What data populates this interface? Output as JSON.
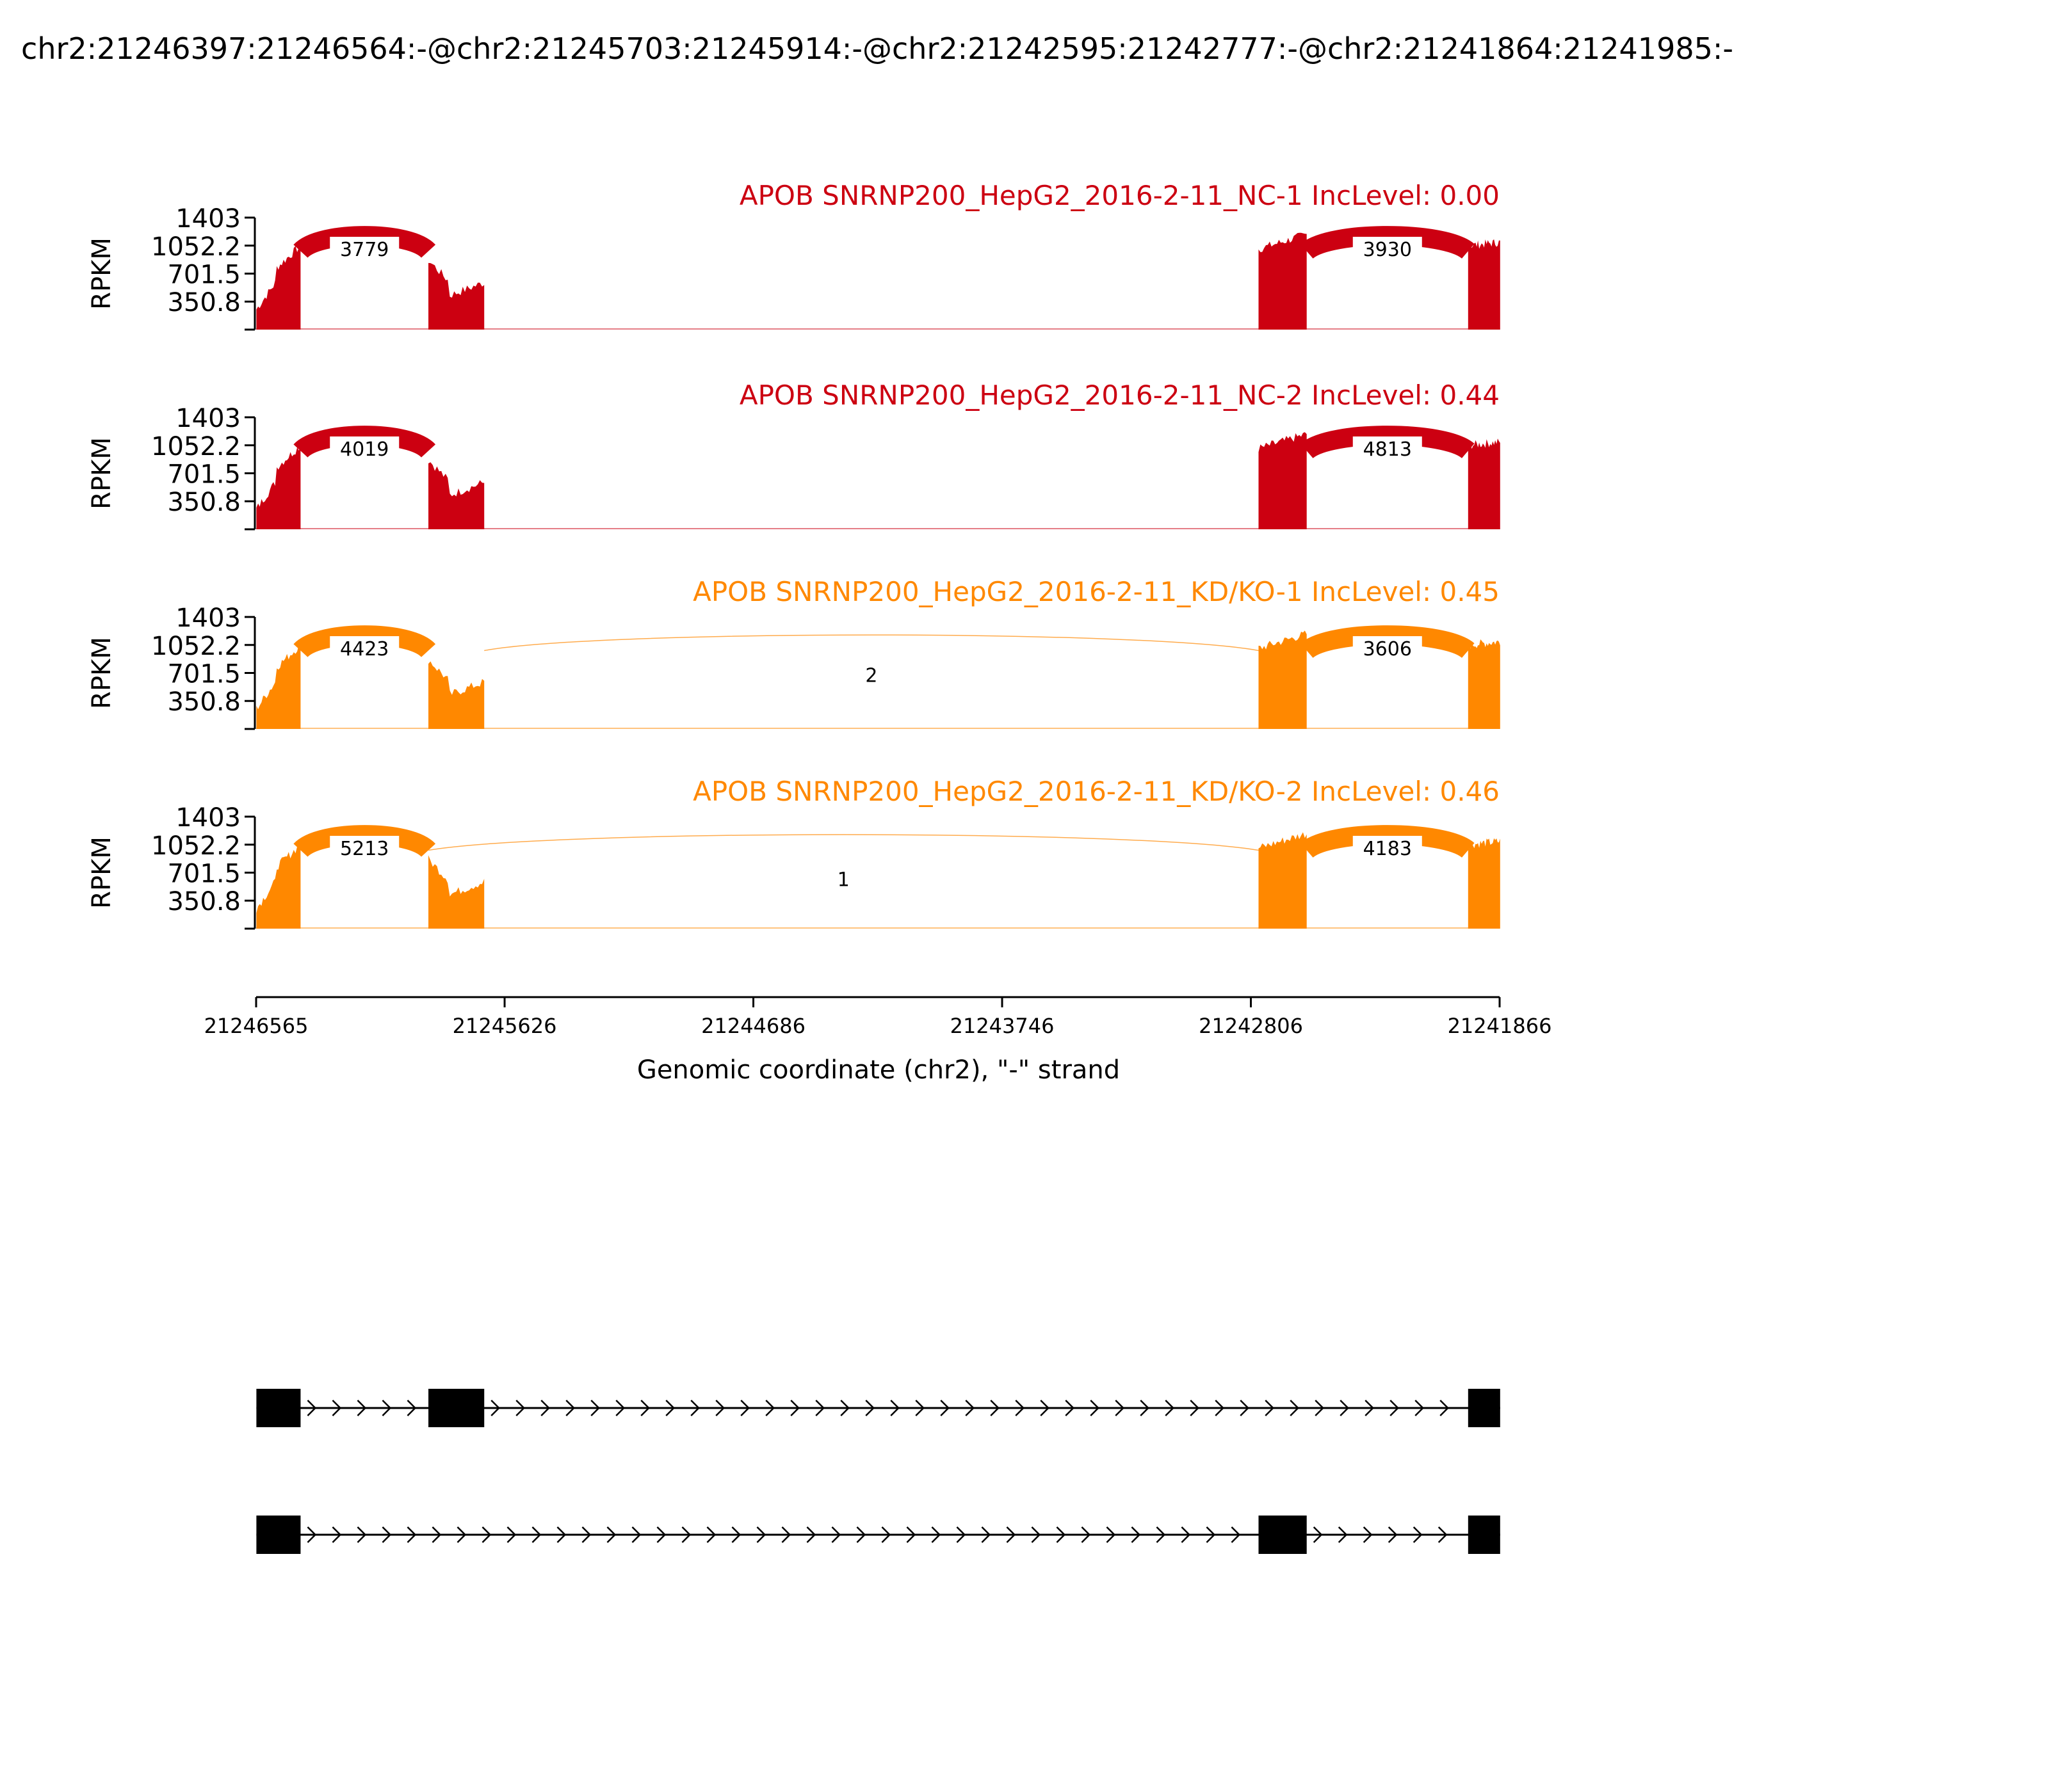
{
  "title": "chr2:21246397:21246564:-@chr2:21245703:21245914:-@chr2:21242595:21242777:-@chr2:21241864:21241985:-",
  "colors": {
    "nc": "#cc0011",
    "kd": "#ff8800",
    "black": "#000000"
  },
  "chart_data": {
    "type": "area",
    "subtype": "sashimi",
    "xlabel": "Genomic coordinate (chr2), \"-\" strand",
    "ylabel": "RPKM",
    "x_range": [
      21246565,
      21241866
    ],
    "x_ticks": [
      "21246565",
      "21245626",
      "21244686",
      "21243746",
      "21242806",
      "21241866"
    ],
    "y_range": [
      0,
      1403
    ],
    "y_ticks": [
      "1403",
      "1052.2",
      "701.5",
      "350.8"
    ],
    "tracks": [
      {
        "label": "APOB SNRNP200_HepG2_2016-2-11_NC-1 IncLevel: 0.00",
        "color_key": "nc",
        "junctions": [
          {
            "start": 21246397,
            "end": 21245914,
            "count": "3779"
          },
          {
            "start": 21242595,
            "end": 21241985,
            "count": "3930"
          }
        ]
      },
      {
        "label": "APOB SNRNP200_HepG2_2016-2-11_NC-2 IncLevel: 0.44",
        "color_key": "nc",
        "junctions": [
          {
            "start": 21246397,
            "end": 21245914,
            "count": "4019"
          },
          {
            "start": 21242595,
            "end": 21241985,
            "count": "4813"
          }
        ]
      },
      {
        "label": "APOB SNRNP200_HepG2_2016-2-11_KD/KO-1 IncLevel: 0.45",
        "color_key": "kd",
        "junctions": [
          {
            "start": 21246397,
            "end": 21245914,
            "count": "4423"
          },
          {
            "start": 21245703,
            "end": 21242777,
            "count": "2"
          },
          {
            "start": 21242595,
            "end": 21241985,
            "count": "3606"
          }
        ]
      },
      {
        "label": "APOB SNRNP200_HepG2_2016-2-11_KD/KO-2 IncLevel: 0.46",
        "color_key": "kd",
        "junctions": [
          {
            "start": 21246397,
            "end": 21245914,
            "count": "5213"
          },
          {
            "start": 21245914,
            "end": 21242777,
            "count": "1"
          },
          {
            "start": 21242595,
            "end": 21241985,
            "count": "4183"
          }
        ]
      }
    ],
    "exons": [
      {
        "start": 21246564,
        "end": 21246397
      },
      {
        "start": 21245914,
        "end": 21245703
      },
      {
        "start": 21242777,
        "end": 21242595
      },
      {
        "start": 21241985,
        "end": 21241864
      }
    ],
    "isoforms": [
      {
        "exons": [
          0,
          1,
          3
        ]
      },
      {
        "exons": [
          0,
          2,
          3
        ]
      }
    ]
  }
}
